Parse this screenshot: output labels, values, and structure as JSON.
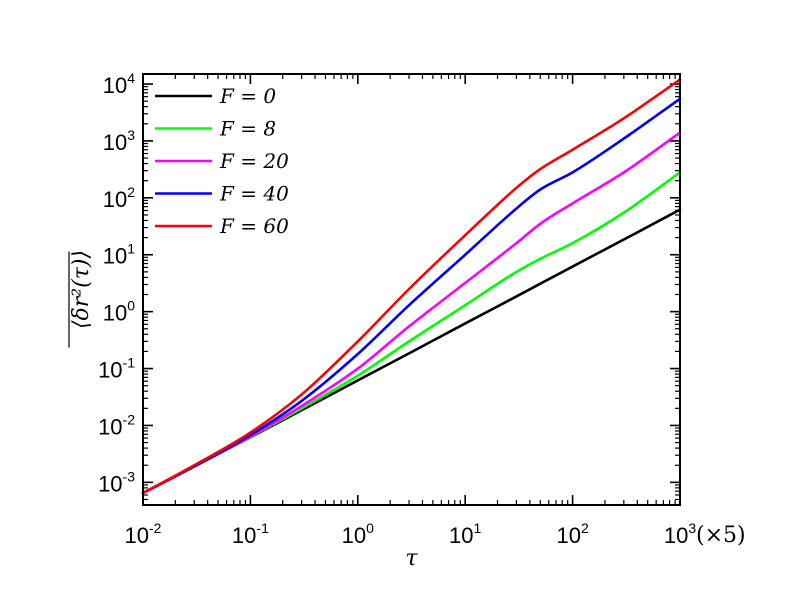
{
  "chart_data": {
    "type": "line",
    "title": "",
    "xlabel": "τ",
    "ylabel": "⟨δr²(τ)⟩",
    "x_unit_note": "(×5)",
    "xscale": "log",
    "yscale": "log",
    "xlim": [
      0.01,
      1000
    ],
    "ylim": [
      0.0004,
      15000
    ],
    "x_ticks": [
      {
        "base": "10",
        "exp": "-2",
        "value": 0.01
      },
      {
        "base": "10",
        "exp": "-1",
        "value": 0.1
      },
      {
        "base": "10",
        "exp": "0",
        "value": 1
      },
      {
        "base": "10",
        "exp": "1",
        "value": 10
      },
      {
        "base": "10",
        "exp": "2",
        "value": 100
      },
      {
        "base": "10",
        "exp": "3",
        "value": 1000
      }
    ],
    "y_ticks": [
      {
        "base": "10",
        "exp": "-3",
        "value": 0.001
      },
      {
        "base": "10",
        "exp": "-2",
        "value": 0.01
      },
      {
        "base": "10",
        "exp": "-1",
        "value": 0.1
      },
      {
        "base": "10",
        "exp": "0",
        "value": 1
      },
      {
        "base": "10",
        "exp": "1",
        "value": 10
      },
      {
        "base": "10",
        "exp": "2",
        "value": 100
      },
      {
        "base": "10",
        "exp": "3",
        "value": 1000
      },
      {
        "base": "10",
        "exp": "4",
        "value": 10000
      }
    ],
    "grid": false,
    "legend_position": "top-left",
    "x": [
      0.01,
      0.03,
      0.1,
      0.3,
      1,
      3,
      10,
      30,
      50,
      100,
      300,
      1000
    ],
    "series": [
      {
        "name": "F = 0",
        "color": "#000000",
        "values": [
          0.00065,
          0.0019,
          0.0062,
          0.0185,
          0.062,
          0.185,
          0.62,
          1.85,
          3.1,
          6.2,
          18.5,
          62
        ]
      },
      {
        "name": "F = 8",
        "color": "#00ff00",
        "values": [
          0.00065,
          0.0019,
          0.0063,
          0.02,
          0.075,
          0.3,
          1.3,
          5.0,
          8.5,
          16,
          55,
          280
        ]
      },
      {
        "name": "F = 20",
        "color": "#ff00ff",
        "values": [
          0.00065,
          0.0019,
          0.0064,
          0.022,
          0.1,
          0.55,
          3.2,
          16,
          35,
          80,
          280,
          1400
        ]
      },
      {
        "name": "F = 40",
        "color": "#0000ff",
        "values": [
          0.00065,
          0.0019,
          0.0068,
          0.027,
          0.18,
          1.3,
          10,
          65,
          140,
          280,
          1100,
          5500
        ]
      },
      {
        "name": "F = 60",
        "color": "#ff0000",
        "values": [
          0.00065,
          0.002,
          0.0075,
          0.035,
          0.3,
          2.5,
          22,
          150,
          320,
          700,
          2500,
          12000
        ]
      }
    ]
  }
}
